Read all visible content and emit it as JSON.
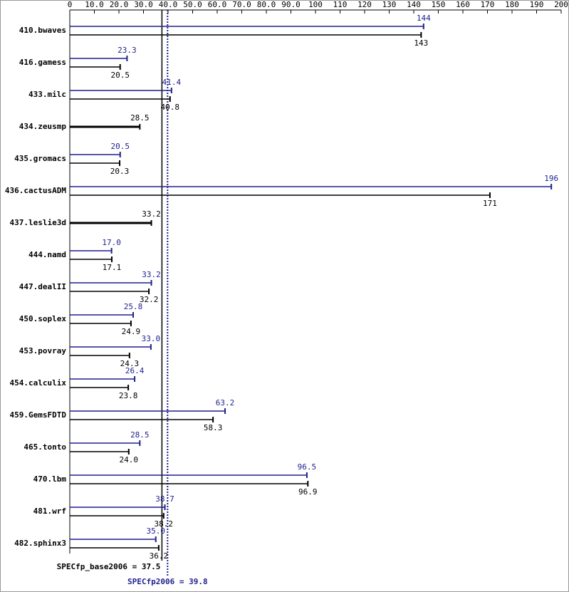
{
  "chart_data": {
    "type": "bar",
    "orientation": "horizontal",
    "categories": [
      "410.bwaves",
      "416.gamess",
      "433.milc",
      "434.zeusmp",
      "435.gromacs",
      "436.cactusADM",
      "437.leslie3d",
      "444.namd",
      "447.dealII",
      "450.soplex",
      "453.povray",
      "454.calculix",
      "459.GemsFDTD",
      "465.tonto",
      "470.lbm",
      "481.wrf",
      "482.sphinx3"
    ],
    "series": [
      {
        "color": "#1f1f8f",
        "values": [
          144,
          23.3,
          41.4,
          null,
          20.5,
          196,
          null,
          17.0,
          33.2,
          25.8,
          33.0,
          26.4,
          63.2,
          28.5,
          96.5,
          38.7,
          35.0
        ],
        "value_labels": [
          "144",
          "23.3",
          "41.4",
          null,
          "20.5",
          "196",
          null,
          "17.0",
          "33.2",
          "25.8",
          "33.0",
          "26.4",
          "63.2",
          "28.5",
          "96.5",
          "38.7",
          "35.0"
        ]
      },
      {
        "color": "#000000",
        "values": [
          143,
          20.5,
          40.8,
          28.5,
          20.3,
          171,
          33.2,
          17.1,
          32.2,
          24.9,
          24.3,
          23.8,
          58.3,
          24.0,
          96.9,
          38.2,
          36.2
        ],
        "value_labels": [
          "143",
          "20.5",
          "40.8",
          "28.5",
          "20.3",
          "171",
          "33.2",
          "17.1",
          "32.2",
          "24.9",
          "24.3",
          "23.8",
          "58.3",
          "24.0",
          "96.9",
          "38.2",
          "36.2"
        ]
      }
    ],
    "xlim": [
      0,
      200
    ],
    "xticks": [
      0,
      {
        "value": 10,
        "label": "10.0"
      },
      {
        "value": 20,
        "label": "20.0"
      },
      {
        "value": 30,
        "label": "30.0"
      },
      {
        "value": 40,
        "label": "40.0"
      },
      {
        "value": 50,
        "label": "50.0"
      },
      {
        "value": 60,
        "label": "60.0"
      },
      {
        "value": 70,
        "label": "70.0"
      },
      {
        "value": 80,
        "label": "80.0"
      },
      {
        "value": 90,
        "label": "90.0"
      },
      100,
      110,
      120,
      130,
      140,
      150,
      160,
      170,
      180,
      190,
      200
    ],
    "reference_lines": [
      {
        "label": "SPECfp_base2006 =",
        "value": 37.5,
        "color": "#000000",
        "style": "solid"
      },
      {
        "label": "SPECfp2006 =",
        "value": 39.8,
        "color": "#1f1f8f",
        "style": "dotted"
      }
    ]
  }
}
